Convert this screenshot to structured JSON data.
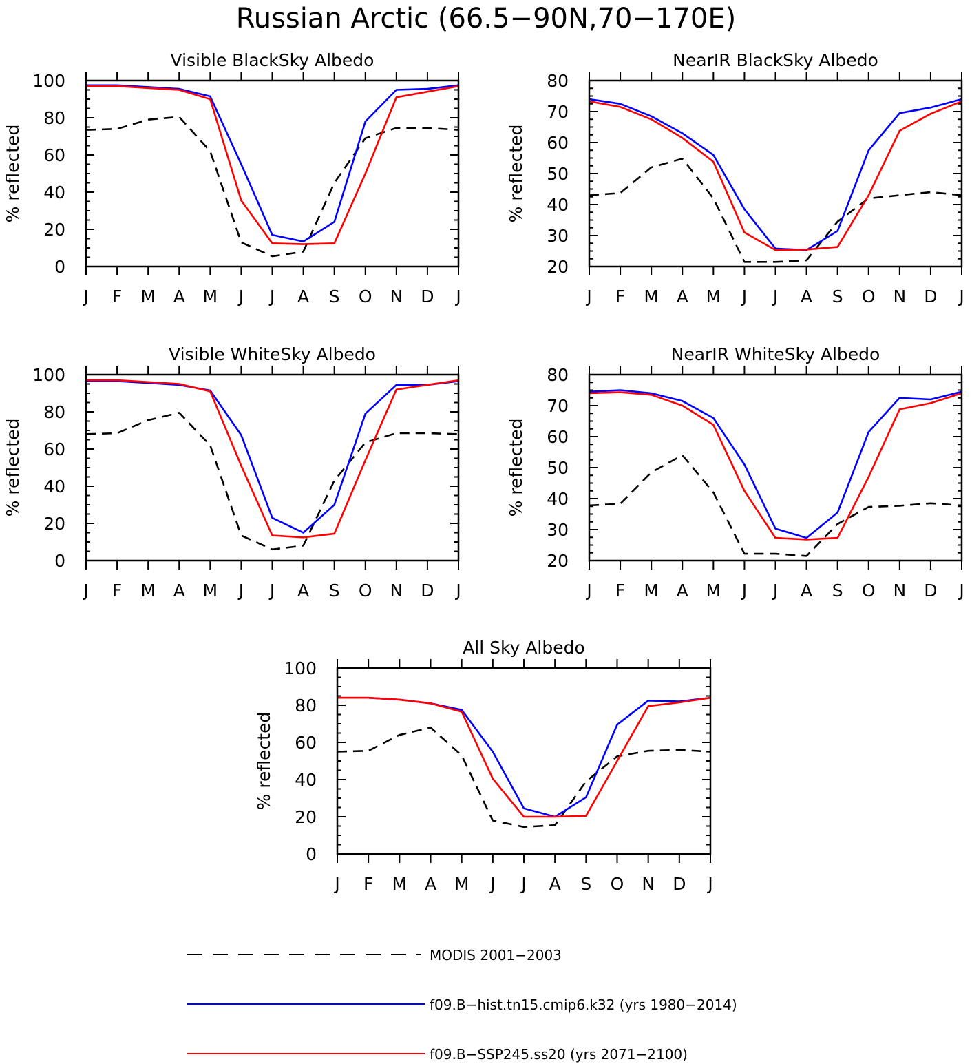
{
  "figure": {
    "title": "Russian Arctic (66.5−90N,70−170E)"
  },
  "legend": [
    {
      "label": "MODIS 2001−2003",
      "color": "#000000",
      "style": "dashed"
    },
    {
      "label": "f09.B−hist.tn15.cmip6.k32 (yrs 1980−2014)",
      "color": "#0000ff",
      "style": "solid"
    },
    {
      "label": "f09.B−SSP245.ss20 (yrs 2071−2100)",
      "color": "#ff0000",
      "style": "solid"
    }
  ],
  "chart_data": [
    {
      "type": "line",
      "title": "Visible BlackSky Albedo",
      "ylabel": "% reflected",
      "xlabel": "",
      "categories": [
        "J",
        "F",
        "M",
        "A",
        "M",
        "J",
        "J",
        "A",
        "S",
        "O",
        "N",
        "D",
        "J"
      ],
      "ylim": [
        0,
        100
      ],
      "yticks": [
        0,
        20,
        40,
        60,
        80,
        100
      ],
      "series": [
        {
          "name": "MODIS 2001−2003",
          "values": [
            73.5,
            74,
            79,
            80.5,
            62,
            13,
            5.5,
            8,
            45,
            69,
            74.5,
            74.5,
            73.5
          ]
        },
        {
          "name": "f09.B−hist.tn15.cmip6.k32 (yrs 1980−2014)",
          "values": [
            97.5,
            97.5,
            96.5,
            95.5,
            91.5,
            55,
            17,
            13.5,
            24,
            78,
            95,
            95.5,
            97.5
          ]
        },
        {
          "name": "f09.B−SSP245.ss20 (yrs 2071−2100)",
          "values": [
            97,
            97,
            96,
            95,
            90,
            35.5,
            12.5,
            12,
            12.5,
            50,
            91,
            94,
            97
          ]
        }
      ]
    },
    {
      "type": "line",
      "title": "NearIR BlackSky Albedo",
      "ylabel": "% reflected",
      "xlabel": "",
      "categories": [
        "J",
        "F",
        "M",
        "A",
        "M",
        "J",
        "J",
        "A",
        "S",
        "O",
        "N",
        "D",
        "J"
      ],
      "ylim": [
        20,
        80
      ],
      "yticks": [
        20,
        30,
        40,
        50,
        60,
        70,
        80
      ],
      "series": [
        {
          "name": "MODIS 2001−2003",
          "values": [
            43,
            43.7,
            52,
            54.8,
            42,
            21.5,
            21.5,
            22,
            34.5,
            42,
            43,
            44,
            43
          ]
        },
        {
          "name": "f09.B−hist.tn15.cmip6.k32 (yrs 1980−2014)",
          "values": [
            74,
            72.5,
            68.5,
            63,
            56,
            38.5,
            25.8,
            25.3,
            31.5,
            57.5,
            69.5,
            71.3,
            74
          ]
        },
        {
          "name": "f09.B−SSP245.ss20 (yrs 2071−2100)",
          "values": [
            73.3,
            71.5,
            67.5,
            61.5,
            53.8,
            31,
            25.3,
            25.5,
            26.3,
            43,
            63.8,
            69.3,
            73.3
          ]
        }
      ]
    },
    {
      "type": "line",
      "title": "Visible WhiteSky Albedo",
      "ylabel": "% reflected",
      "xlabel": "",
      "categories": [
        "J",
        "F",
        "M",
        "A",
        "M",
        "J",
        "J",
        "A",
        "S",
        "O",
        "N",
        "D",
        "J"
      ],
      "ylim": [
        0,
        100
      ],
      "yticks": [
        0,
        20,
        40,
        60,
        80,
        100
      ],
      "series": [
        {
          "name": "MODIS 2001−2003",
          "values": [
            68,
            68.5,
            75.5,
            79.5,
            62,
            13.5,
            6,
            8,
            43,
            63.5,
            68.5,
            68.5,
            68
          ]
        },
        {
          "name": "f09.B−hist.tn15.cmip6.k32 (yrs 1980−2014)",
          "values": [
            96.5,
            96.5,
            95.5,
            94.5,
            91.5,
            67.5,
            23,
            15,
            30,
            79,
            94.5,
            94.5,
            96.5
          ]
        },
        {
          "name": "f09.B−SSP245.ss20 (yrs 2071−2100)",
          "values": [
            97,
            97,
            96,
            95,
            91,
            51,
            13.5,
            12.5,
            14.5,
            54,
            92,
            94.5,
            97
          ]
        }
      ]
    },
    {
      "type": "line",
      "title": "NearIR WhiteSky Albedo",
      "ylabel": "% reflected",
      "xlabel": "",
      "categories": [
        "J",
        "F",
        "M",
        "A",
        "M",
        "J",
        "J",
        "A",
        "S",
        "O",
        "N",
        "D",
        "J"
      ],
      "ylim": [
        20,
        80
      ],
      "yticks": [
        20,
        30,
        40,
        50,
        60,
        70,
        80
      ],
      "series": [
        {
          "name": "MODIS 2001−2003",
          "values": [
            37.8,
            38.3,
            48.5,
            54,
            42,
            22.2,
            22.2,
            21.5,
            31.8,
            37.3,
            37.7,
            38.5,
            37.8
          ]
        },
        {
          "name": "f09.B−hist.tn15.cmip6.k32 (yrs 1980−2014)",
          "values": [
            74.5,
            75,
            74,
            71.5,
            66,
            51,
            30.3,
            27.3,
            35.5,
            61.5,
            72.5,
            72,
            74.5
          ]
        },
        {
          "name": "f09.B−SSP245.ss20 (yrs 2071−2100)",
          "values": [
            74,
            74.3,
            73.5,
            70,
            63.8,
            42.5,
            27.3,
            26.8,
            27.3,
            47,
            68.8,
            70.8,
            74
          ]
        }
      ]
    },
    {
      "type": "line",
      "title": "All Sky Albedo",
      "ylabel": "% reflected",
      "xlabel": "",
      "categories": [
        "J",
        "F",
        "M",
        "A",
        "M",
        "J",
        "J",
        "A",
        "S",
        "O",
        "N",
        "D",
        "J"
      ],
      "ylim": [
        0,
        100
      ],
      "yticks": [
        0,
        20,
        40,
        60,
        80,
        100
      ],
      "series": [
        {
          "name": "MODIS 2001−2003",
          "values": [
            55,
            55.5,
            64,
            68,
            53,
            18,
            14.5,
            15.5,
            39,
            52.5,
            55.5,
            56,
            55
          ]
        },
        {
          "name": "f09.B−hist.tn15.cmip6.k32 (yrs 1980−2014)",
          "values": [
            84,
            84,
            83,
            81,
            77.5,
            55,
            24.5,
            20,
            30.5,
            69.5,
            82.5,
            82,
            84
          ]
        },
        {
          "name": "f09.B−SSP245.ss20 (yrs 2071−2100)",
          "values": [
            84,
            84,
            83,
            81,
            76.5,
            40.5,
            20,
            20,
            20.5,
            50,
            79.5,
            81.5,
            84
          ]
        }
      ]
    }
  ]
}
